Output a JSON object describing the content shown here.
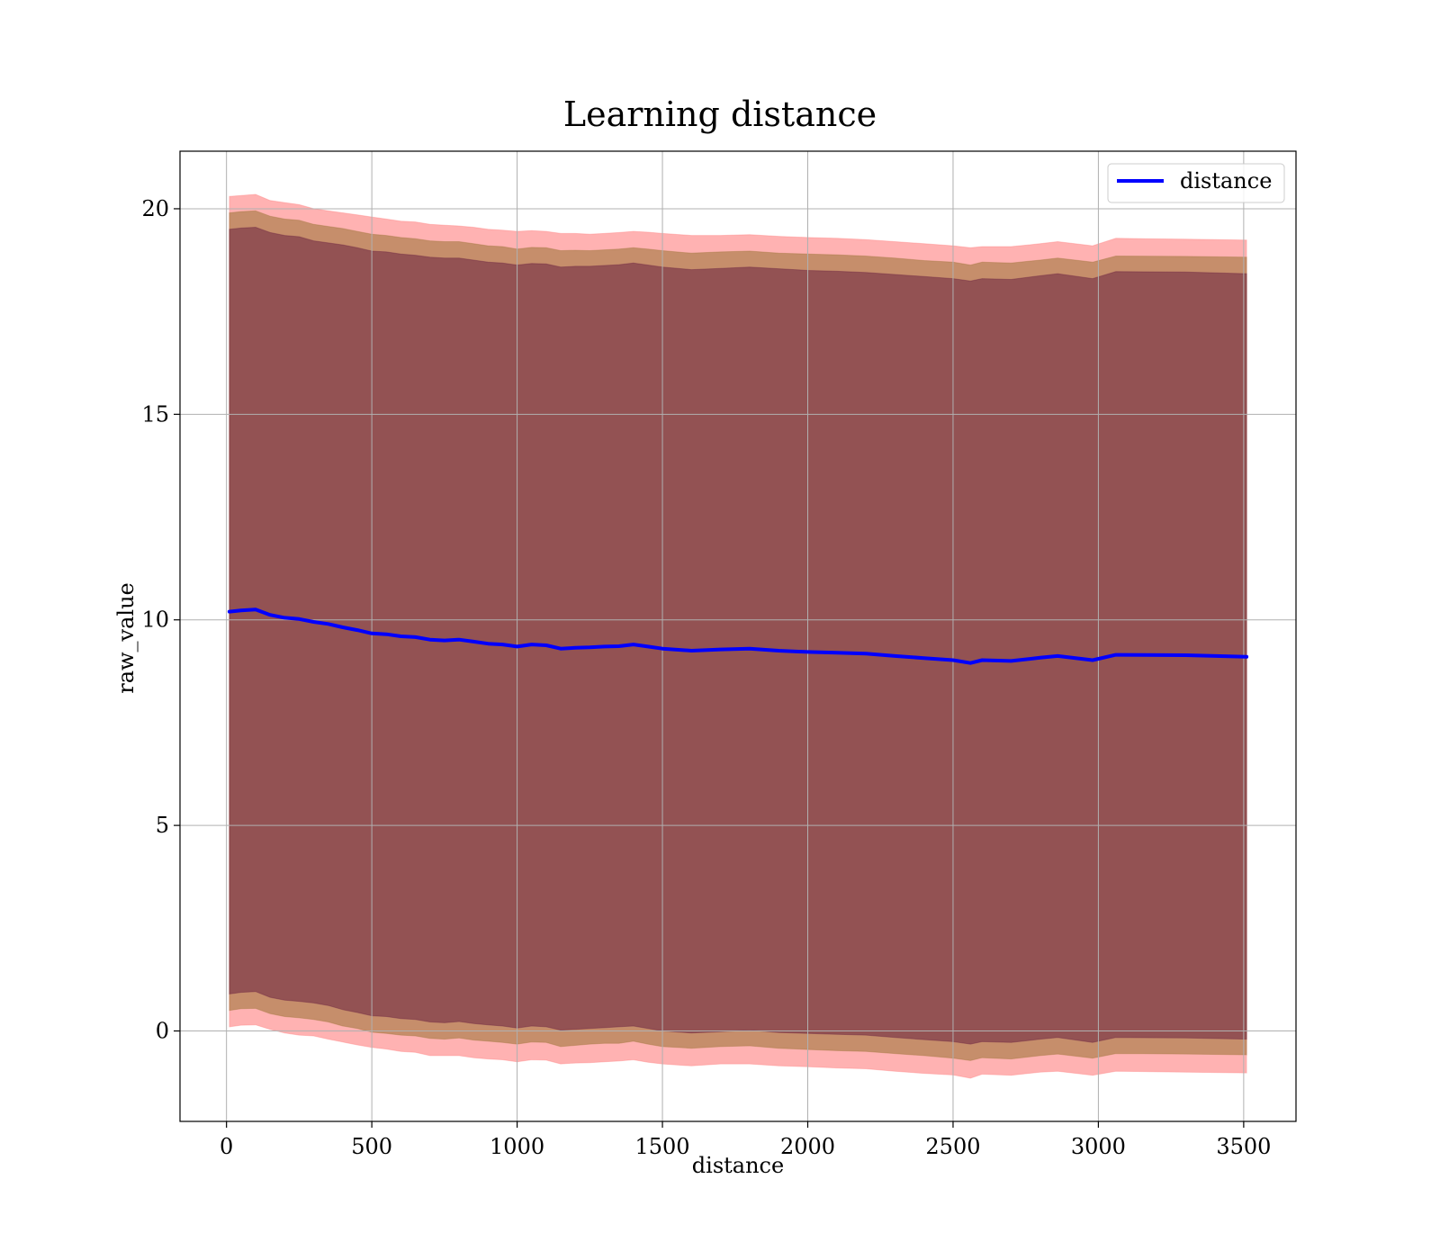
{
  "chart_data": {
    "type": "line",
    "title": "Learning distance",
    "xlabel": "distance",
    "ylabel": "raw_value",
    "xlim": [
      -160,
      3680
    ],
    "ylim": [
      -2.2,
      21.4
    ],
    "xticks": [
      0,
      500,
      1000,
      1500,
      2000,
      2500,
      3000,
      3500
    ],
    "yticks": [
      0,
      5,
      10,
      15,
      20
    ],
    "grid": true,
    "legend": {
      "position": "top-right",
      "entries": [
        "distance"
      ]
    },
    "colors": {
      "line": "#0000ff",
      "band_outer": "#ff7f7f",
      "band_middle": "#a0763c",
      "band_inner": "#6a2040"
    },
    "series": [
      {
        "name": "distance",
        "x": [
          10,
          50,
          100,
          150,
          200,
          250,
          300,
          350,
          400,
          450,
          500,
          550,
          600,
          650,
          700,
          750,
          800,
          850,
          900,
          950,
          1000,
          1050,
          1100,
          1150,
          1200,
          1250,
          1300,
          1350,
          1400,
          1450,
          1500,
          1600,
          1700,
          1800,
          1900,
          2000,
          2100,
          2200,
          2300,
          2400,
          2500,
          2560,
          2600,
          2700,
          2800,
          2860,
          2980,
          3060,
          3300,
          3510
        ],
        "y": [
          10.2,
          10.23,
          10.25,
          10.12,
          10.05,
          10.02,
          9.95,
          9.9,
          9.82,
          9.75,
          9.67,
          9.65,
          9.6,
          9.58,
          9.52,
          9.5,
          9.52,
          9.47,
          9.42,
          9.4,
          9.35,
          9.4,
          9.38,
          9.3,
          9.32,
          9.33,
          9.35,
          9.36,
          9.4,
          9.35,
          9.3,
          9.25,
          9.28,
          9.3,
          9.25,
          9.22,
          9.2,
          9.18,
          9.12,
          9.07,
          9.02,
          8.95,
          9.02,
          9.0,
          9.08,
          9.12,
          9.02,
          9.15,
          9.14,
          9.1
        ]
      }
    ],
    "bands": [
      {
        "name": "outer",
        "color": "#ff7f7f",
        "upper": [
          20.3,
          20.32,
          20.35,
          20.2,
          20.15,
          20.1,
          20.0,
          19.95,
          19.9,
          19.85,
          19.8,
          19.75,
          19.7,
          19.68,
          19.62,
          19.6,
          19.58,
          19.55,
          19.5,
          19.48,
          19.45,
          19.47,
          19.45,
          19.4,
          19.4,
          19.38,
          19.4,
          19.42,
          19.45,
          19.43,
          19.4,
          19.35,
          19.35,
          19.37,
          19.33,
          19.3,
          19.28,
          19.25,
          19.2,
          19.15,
          19.1,
          19.05,
          19.08,
          19.08,
          19.15,
          19.2,
          19.1,
          19.28,
          19.26,
          19.24
        ],
        "lower": [
          0.1,
          0.14,
          0.15,
          0.04,
          -0.05,
          -0.1,
          -0.12,
          -0.2,
          -0.27,
          -0.34,
          -0.4,
          -0.44,
          -0.5,
          -0.52,
          -0.6,
          -0.6,
          -0.6,
          -0.65,
          -0.68,
          -0.7,
          -0.75,
          -0.7,
          -0.71,
          -0.8,
          -0.78,
          -0.77,
          -0.75,
          -0.73,
          -0.7,
          -0.76,
          -0.8,
          -0.85,
          -0.8,
          -0.8,
          -0.85,
          -0.87,
          -0.9,
          -0.92,
          -0.98,
          -1.03,
          -1.07,
          -1.15,
          -1.05,
          -1.08,
          -1.0,
          -0.98,
          -1.08,
          -0.98,
          -1.0,
          -1.02
        ]
      },
      {
        "name": "middle",
        "color": "#a0763c",
        "upper": [
          19.9,
          19.93,
          19.95,
          19.82,
          19.75,
          19.72,
          19.62,
          19.57,
          19.52,
          19.45,
          19.38,
          19.35,
          19.3,
          19.27,
          19.22,
          19.2,
          19.2,
          19.15,
          19.1,
          19.08,
          19.02,
          19.06,
          19.05,
          18.98,
          18.99,
          18.98,
          19.0,
          19.02,
          19.05,
          19.02,
          18.98,
          18.92,
          18.95,
          18.97,
          18.92,
          18.9,
          18.88,
          18.85,
          18.8,
          18.74,
          18.7,
          18.63,
          18.7,
          18.68,
          18.75,
          18.8,
          18.7,
          18.85,
          18.84,
          18.82
        ],
        "lower": [
          0.5,
          0.54,
          0.55,
          0.42,
          0.35,
          0.32,
          0.28,
          0.22,
          0.12,
          0.06,
          -0.03,
          -0.06,
          -0.1,
          -0.12,
          -0.18,
          -0.2,
          -0.17,
          -0.22,
          -0.25,
          -0.28,
          -0.32,
          -0.27,
          -0.28,
          -0.38,
          -0.35,
          -0.32,
          -0.3,
          -0.3,
          -0.25,
          -0.32,
          -0.38,
          -0.42,
          -0.38,
          -0.36,
          -0.42,
          -0.45,
          -0.48,
          -0.5,
          -0.55,
          -0.6,
          -0.66,
          -0.72,
          -0.65,
          -0.68,
          -0.6,
          -0.56,
          -0.66,
          -0.55,
          -0.56,
          -0.58
        ]
      },
      {
        "name": "inner",
        "color": "#6a2040",
        "upper": [
          19.5,
          19.53,
          19.55,
          19.42,
          19.35,
          19.32,
          19.22,
          19.17,
          19.12,
          19.05,
          18.97,
          18.95,
          18.9,
          18.87,
          18.82,
          18.8,
          18.8,
          18.75,
          18.7,
          18.68,
          18.63,
          18.67,
          18.66,
          18.58,
          18.6,
          18.6,
          18.62,
          18.64,
          18.68,
          18.63,
          18.58,
          18.52,
          18.55,
          18.58,
          18.54,
          18.5,
          18.48,
          18.45,
          18.4,
          18.35,
          18.3,
          18.24,
          18.3,
          18.28,
          18.37,
          18.42,
          18.3,
          18.47,
          18.46,
          18.42
        ],
        "lower": [
          0.9,
          0.94,
          0.96,
          0.82,
          0.75,
          0.72,
          0.68,
          0.62,
          0.52,
          0.45,
          0.37,
          0.35,
          0.3,
          0.28,
          0.22,
          0.2,
          0.23,
          0.18,
          0.15,
          0.12,
          0.07,
          0.12,
          0.1,
          0.02,
          0.04,
          0.06,
          0.08,
          0.1,
          0.12,
          0.06,
          0.0,
          -0.05,
          -0.02,
          0.02,
          -0.04,
          -0.06,
          -0.08,
          -0.1,
          -0.16,
          -0.21,
          -0.26,
          -0.32,
          -0.26,
          -0.28,
          -0.2,
          -0.16,
          -0.28,
          -0.16,
          -0.17,
          -0.2
        ]
      }
    ]
  }
}
